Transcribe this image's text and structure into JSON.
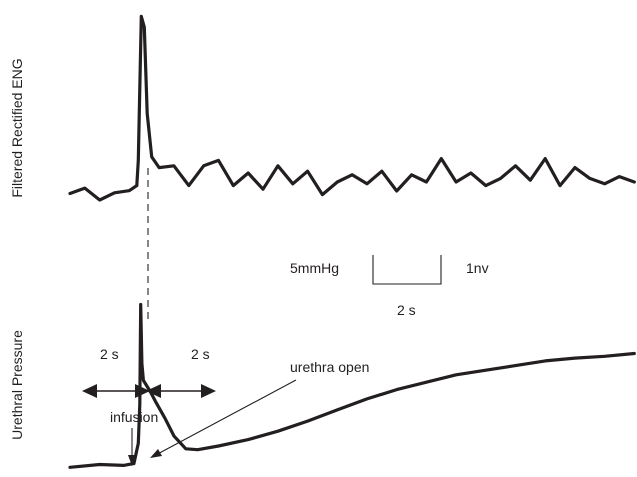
{
  "chart_data": {
    "type": "line",
    "title": "",
    "panels": [
      {
        "ylabel": "Filtered Rectified ENG",
        "series": [
          {
            "name": "",
            "x": [
              0,
              0.5,
              1.0,
              1.5,
              2.0,
              2.25,
              2.3,
              2.4,
              2.5,
              2.6,
              2.75,
              3.0,
              3.5,
              4.0,
              4.5,
              5.0,
              5.5,
              6.0,
              6.5,
              7.0,
              7.5,
              8.0,
              8.5,
              9.0,
              9.5,
              10.0,
              10.5,
              11.0,
              11.5,
              12.0,
              12.5,
              13.0,
              13.5,
              14.0,
              14.5,
              15.0,
              15.5,
              16.0,
              16.5,
              17.0,
              17.5,
              18.0,
              18.5,
              19.0
            ],
            "y": [
              0.18,
              0.33,
              0.0,
              0.2,
              0.26,
              0.4,
              1.1,
              5.1,
              4.8,
              2.4,
              1.2,
              0.9,
              0.95,
              0.4,
              0.95,
              1.1,
              0.4,
              0.75,
              0.3,
              0.95,
              0.45,
              0.8,
              0.15,
              0.5,
              0.7,
              0.45,
              0.8,
              0.25,
              0.7,
              0.5,
              1.15,
              0.5,
              0.75,
              0.4,
              0.6,
              0.95,
              0.55,
              1.15,
              0.4,
              0.9,
              0.6,
              0.45,
              0.65,
              0.5
            ]
          }
        ]
      },
      {
        "ylabel": "Urethral Pressure",
        "series": [
          {
            "name": "",
            "x": [
              0,
              1.0,
              1.8,
              2.15,
              2.3,
              2.35,
              2.38,
              2.42,
              2.47,
              2.55,
              2.7,
              2.9,
              3.2,
              3.5,
              3.9,
              4.3,
              5.0,
              6.0,
              7.0,
              8.0,
              9.0,
              10.0,
              11.0,
              12.0,
              13.0,
              14.0,
              15.0,
              16.0,
              17.0,
              18.0,
              19.0
            ],
            "y": [
              0.2,
              0.35,
              0.3,
              0.4,
              1.5,
              3.6,
              9.0,
              5.8,
              4.9,
              4.7,
              4.3,
              3.7,
              2.85,
              1.9,
              1.2,
              1.15,
              1.35,
              1.7,
              2.15,
              2.7,
              3.3,
              3.9,
              4.4,
              4.8,
              5.2,
              5.45,
              5.7,
              5.95,
              6.1,
              6.2,
              6.35
            ]
          }
        ]
      }
    ],
    "scale_bar": {
      "pressure_label": "5mmHg",
      "eng_label": "1nv",
      "time_label": "2 s"
    },
    "annotations": {
      "left_interval": "2 s",
      "right_interval": "2 s",
      "infusion": "infusion",
      "urethra_open": "urethra open"
    }
  }
}
